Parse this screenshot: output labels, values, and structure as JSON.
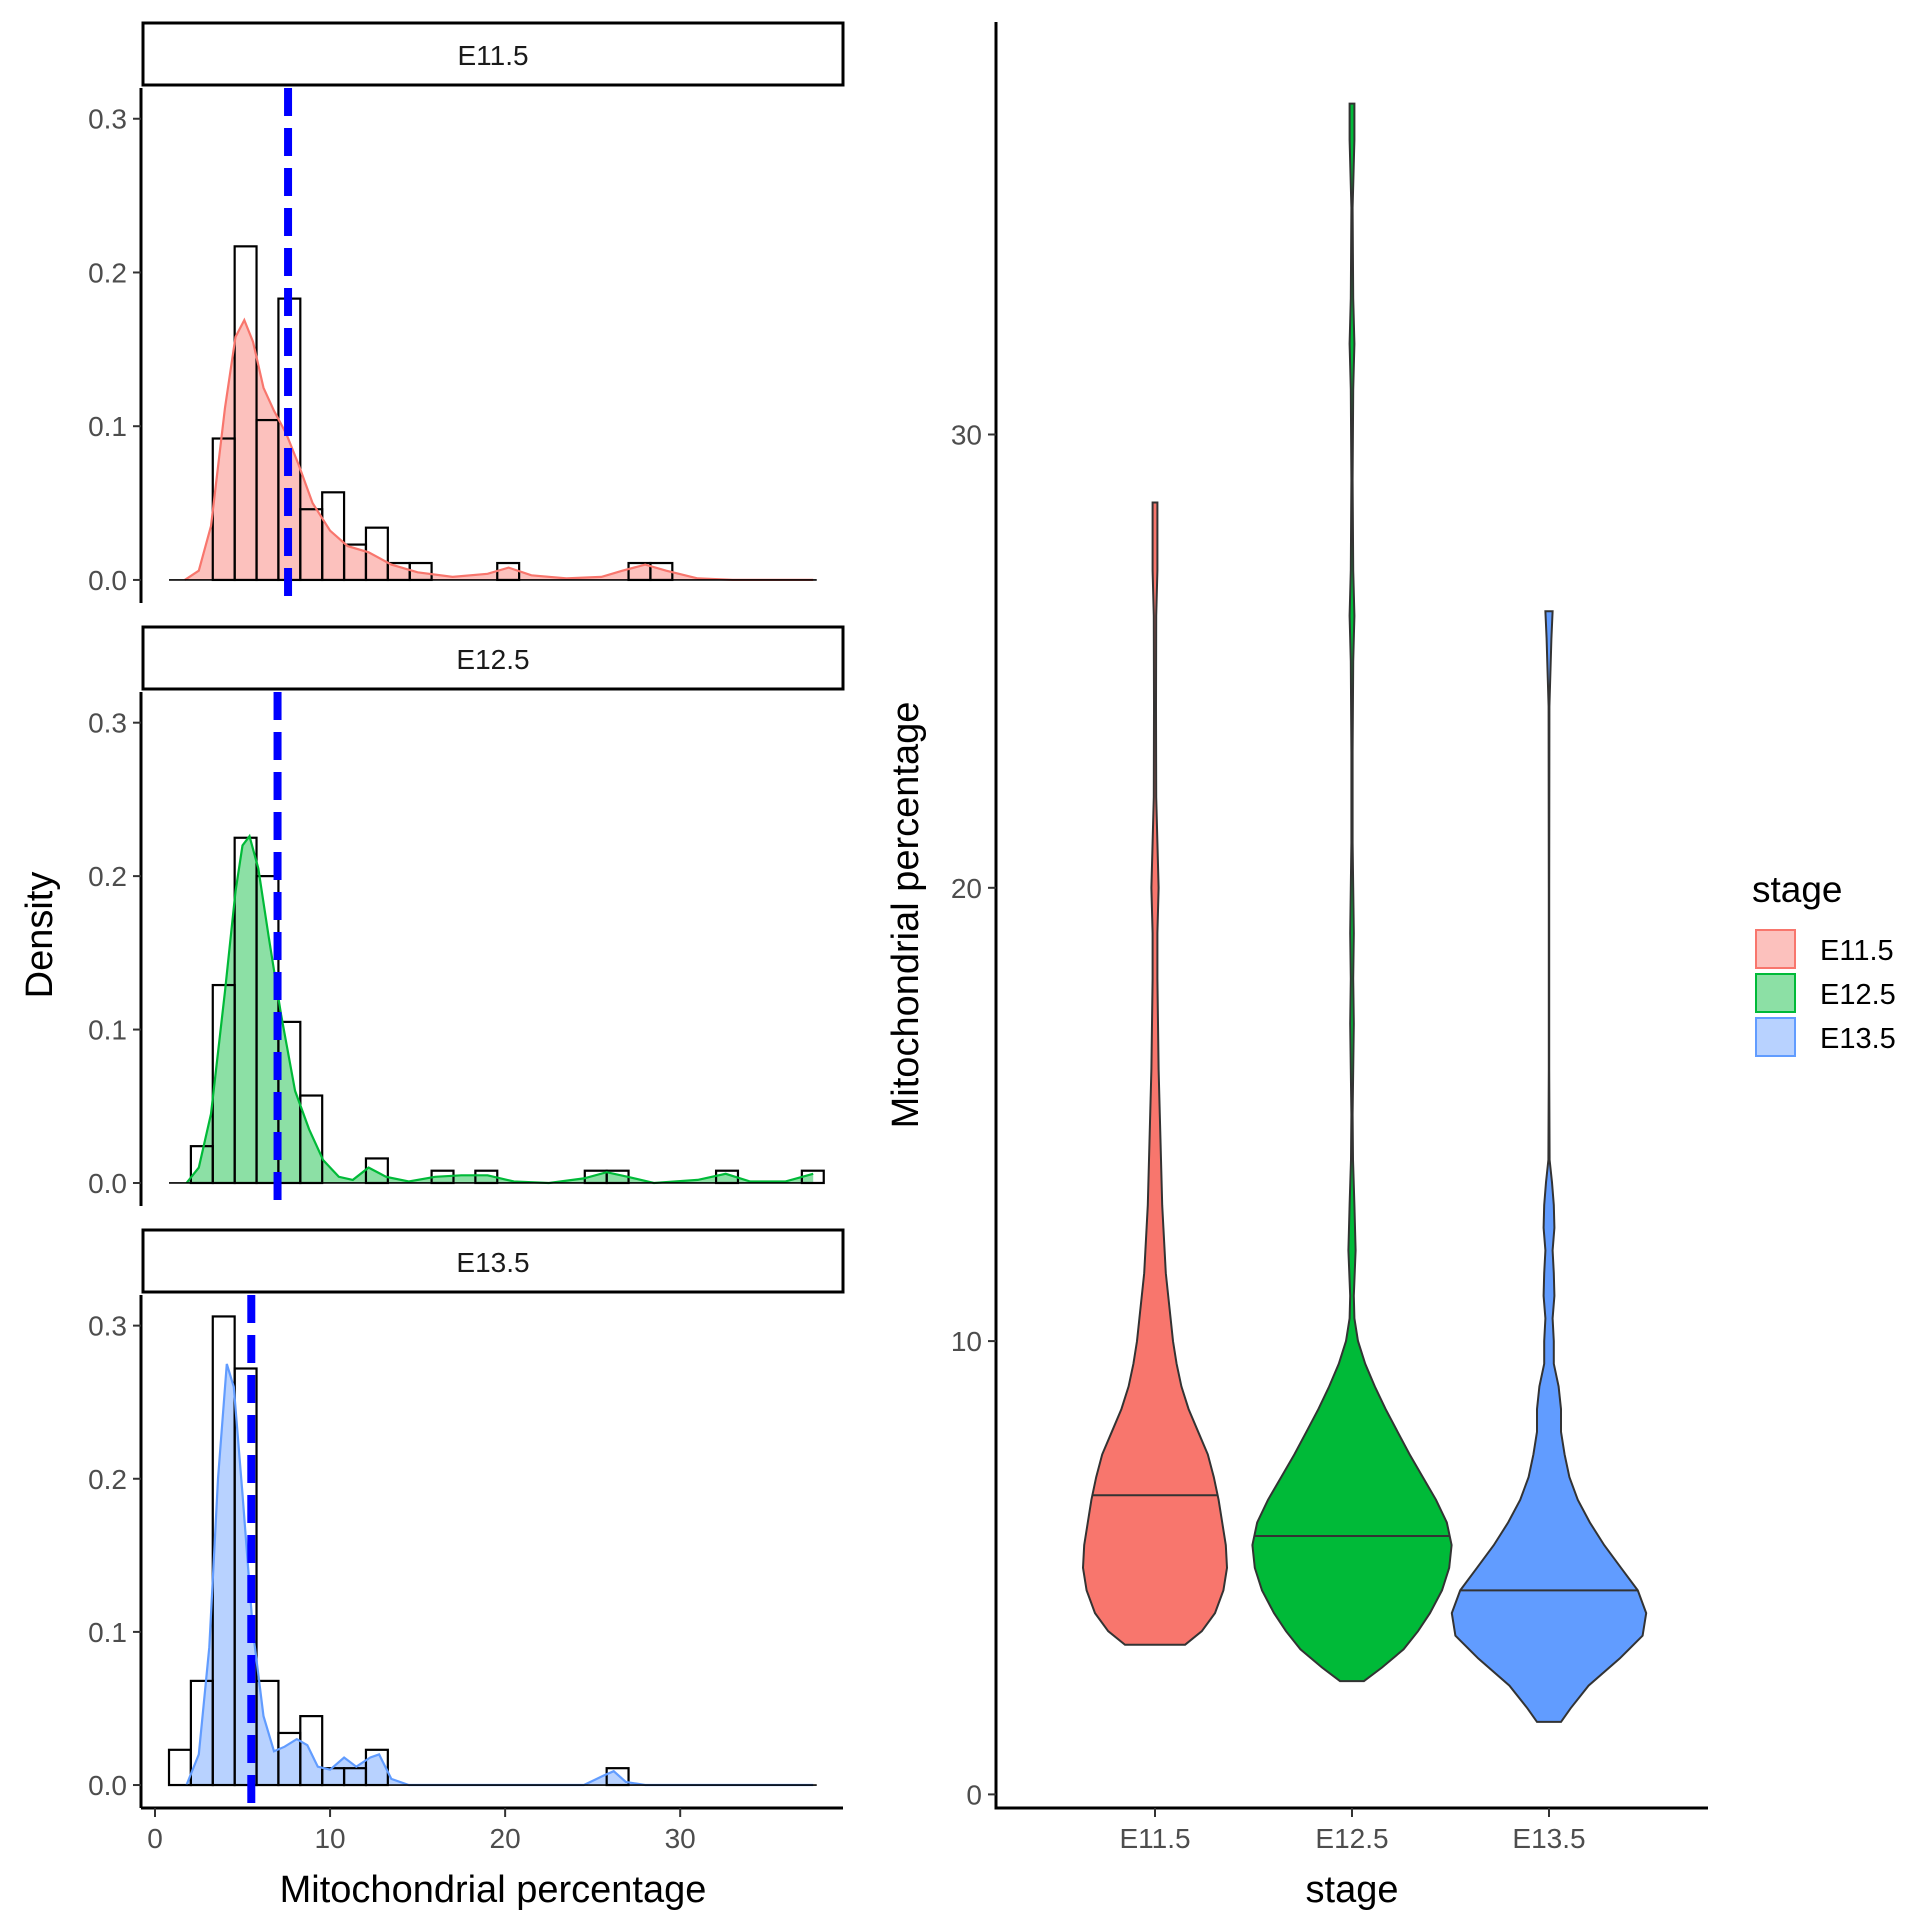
{
  "colors": {
    "E11.5": "#F8766D",
    "E12.5": "#00BA38",
    "E13.5": "#619CFF",
    "mean_line": "#0000FF"
  },
  "chart_data": [
    {
      "type": "histogram",
      "panel_layout": "faceted, 3 rows",
      "xlabel": "Mitochondrial percentage",
      "ylabel": "Density",
      "xlim": [
        -0.8,
        39.3
      ],
      "ylim": [
        -0.015,
        0.32
      ],
      "xticks": [
        0,
        10,
        20,
        30
      ],
      "yticks": [
        0.0,
        0.1,
        0.2,
        0.3
      ],
      "bin_width": 1.25,
      "overlays": [
        "kernel density curve (filled, semi-transparent)",
        "dashed vertical line at mean"
      ],
      "facets": [
        {
          "label": "E11.5",
          "mean_line_x": 7.6,
          "bins": [
            {
              "x0": 3.3,
              "x1": 4.55,
              "density": 0.092
            },
            {
              "x0": 4.55,
              "x1": 5.8,
              "density": 0.217
            },
            {
              "x0": 5.8,
              "x1": 7.05,
              "density": 0.104
            },
            {
              "x0": 7.05,
              "x1": 8.3,
              "density": 0.183
            },
            {
              "x0": 8.3,
              "x1": 9.55,
              "density": 0.046
            },
            {
              "x0": 9.55,
              "x1": 10.8,
              "density": 0.057
            },
            {
              "x0": 10.8,
              "x1": 12.05,
              "density": 0.023
            },
            {
              "x0": 12.05,
              "x1": 13.3,
              "density": 0.034
            },
            {
              "x0": 13.3,
              "x1": 14.55,
              "density": 0.011
            },
            {
              "x0": 14.55,
              "x1": 15.8,
              "density": 0.011
            },
            {
              "x0": 19.55,
              "x1": 20.8,
              "density": 0.011
            },
            {
              "x0": 27.05,
              "x1": 28.3,
              "density": 0.011
            },
            {
              "x0": 28.3,
              "x1": 29.55,
              "density": 0.011
            }
          ],
          "density_curve": [
            [
              1.7,
              0.0
            ],
            [
              2.5,
              0.006
            ],
            [
              3.2,
              0.035
            ],
            [
              4.0,
              0.112
            ],
            [
              4.6,
              0.158
            ],
            [
              5.1,
              0.169
            ],
            [
              5.6,
              0.155
            ],
            [
              6.2,
              0.125
            ],
            [
              6.8,
              0.11
            ],
            [
              7.5,
              0.095
            ],
            [
              8.2,
              0.075
            ],
            [
              9.0,
              0.05
            ],
            [
              10.0,
              0.032
            ],
            [
              11.0,
              0.022
            ],
            [
              12.2,
              0.018
            ],
            [
              13.5,
              0.01
            ],
            [
              15.0,
              0.005
            ],
            [
              17.0,
              0.002
            ],
            [
              19.0,
              0.004
            ],
            [
              20.2,
              0.008
            ],
            [
              21.5,
              0.003
            ],
            [
              23.5,
              0.001
            ],
            [
              25.5,
              0.002
            ],
            [
              26.7,
              0.006
            ],
            [
              28.0,
              0.01
            ],
            [
              29.2,
              0.006
            ],
            [
              31.0,
              0.001
            ],
            [
              33.0,
              0.0
            ],
            [
              37.6,
              0.0
            ]
          ]
        },
        {
          "label": "E12.5",
          "mean_line_x": 7.0,
          "bins": [
            {
              "x0": 2.05,
              "x1": 3.3,
              "density": 0.024
            },
            {
              "x0": 3.3,
              "x1": 4.55,
              "density": 0.129
            },
            {
              "x0": 4.55,
              "x1": 5.8,
              "density": 0.225
            },
            {
              "x0": 5.8,
              "x1": 7.05,
              "density": 0.2
            },
            {
              "x0": 7.05,
              "x1": 8.3,
              "density": 0.105
            },
            {
              "x0": 8.3,
              "x1": 9.55,
              "density": 0.057
            },
            {
              "x0": 12.05,
              "x1": 13.3,
              "density": 0.016
            },
            {
              "x0": 15.8,
              "x1": 17.05,
              "density": 0.008
            },
            {
              "x0": 18.3,
              "x1": 19.55,
              "density": 0.008
            },
            {
              "x0": 24.55,
              "x1": 25.8,
              "density": 0.008
            },
            {
              "x0": 25.8,
              "x1": 27.05,
              "density": 0.008
            },
            {
              "x0": 32.05,
              "x1": 33.3,
              "density": 0.008
            },
            {
              "x0": 36.95,
              "x1": 38.2,
              "density": 0.008
            }
          ],
          "density_curve": [
            [
              1.8,
              0.0
            ],
            [
              2.5,
              0.01
            ],
            [
              3.2,
              0.045
            ],
            [
              4.0,
              0.125
            ],
            [
              4.6,
              0.19
            ],
            [
              5.0,
              0.22
            ],
            [
              5.4,
              0.226
            ],
            [
              5.9,
              0.205
            ],
            [
              6.5,
              0.16
            ],
            [
              7.2,
              0.11
            ],
            [
              8.0,
              0.06
            ],
            [
              8.8,
              0.035
            ],
            [
              9.6,
              0.015
            ],
            [
              10.5,
              0.004
            ],
            [
              11.3,
              0.002
            ],
            [
              12.2,
              0.01
            ],
            [
              13.2,
              0.004
            ],
            [
              14.5,
              0.001
            ],
            [
              16.0,
              0.004
            ],
            [
              17.5,
              0.005
            ],
            [
              19.0,
              0.005
            ],
            [
              20.5,
              0.001
            ],
            [
              22.5,
              0.0
            ],
            [
              24.5,
              0.003
            ],
            [
              25.8,
              0.007
            ],
            [
              27.0,
              0.004
            ],
            [
              28.5,
              0.0
            ],
            [
              31.0,
              0.002
            ],
            [
              32.6,
              0.006
            ],
            [
              34.0,
              0.001
            ],
            [
              36.0,
              0.001
            ],
            [
              37.6,
              0.006
            ]
          ]
        },
        {
          "label": "E13.5",
          "mean_line_x": 5.5,
          "bins": [
            {
              "x0": 0.8,
              "x1": 2.05,
              "density": 0.023
            },
            {
              "x0": 2.05,
              "x1": 3.3,
              "density": 0.068
            },
            {
              "x0": 3.3,
              "x1": 4.55,
              "density": 0.306
            },
            {
              "x0": 4.55,
              "x1": 5.8,
              "density": 0.272
            },
            {
              "x0": 5.8,
              "x1": 7.05,
              "density": 0.068
            },
            {
              "x0": 7.05,
              "x1": 8.3,
              "density": 0.034
            },
            {
              "x0": 8.3,
              "x1": 9.55,
              "density": 0.045
            },
            {
              "x0": 9.55,
              "x1": 10.8,
              "density": 0.011
            },
            {
              "x0": 10.8,
              "x1": 12.05,
              "density": 0.011
            },
            {
              "x0": 12.05,
              "x1": 13.3,
              "density": 0.023
            },
            {
              "x0": 25.8,
              "x1": 27.05,
              "density": 0.011
            }
          ],
          "density_curve": [
            [
              1.8,
              0.0
            ],
            [
              2.5,
              0.02
            ],
            [
              3.1,
              0.09
            ],
            [
              3.6,
              0.2
            ],
            [
              4.1,
              0.275
            ],
            [
              4.5,
              0.26
            ],
            [
              5.0,
              0.19
            ],
            [
              5.6,
              0.1
            ],
            [
              6.2,
              0.045
            ],
            [
              6.8,
              0.022
            ],
            [
              7.4,
              0.025
            ],
            [
              8.1,
              0.03
            ],
            [
              8.7,
              0.026
            ],
            [
              9.3,
              0.012
            ],
            [
              10.0,
              0.01
            ],
            [
              10.8,
              0.018
            ],
            [
              11.5,
              0.012
            ],
            [
              12.3,
              0.018
            ],
            [
              12.8,
              0.02
            ],
            [
              13.5,
              0.004
            ],
            [
              14.5,
              0.0
            ],
            [
              24.5,
              0.0
            ],
            [
              25.6,
              0.006
            ],
            [
              26.2,
              0.009
            ],
            [
              26.9,
              0.002
            ],
            [
              28.0,
              0.0
            ],
            [
              37.6,
              0.0
            ]
          ]
        }
      ]
    },
    {
      "type": "violin",
      "xlabel": "stage",
      "ylabel": "Mitochondrial percentage",
      "categories": [
        "E11.5",
        "E12.5",
        "E13.5"
      ],
      "ylim": [
        -0.3,
        39.1
      ],
      "yticks": [
        0,
        10,
        20,
        30
      ],
      "legend": {
        "title": "stage",
        "position": "right",
        "entries": [
          "E11.5",
          "E12.5",
          "E13.5"
        ]
      },
      "series": [
        {
          "name": "E11.5",
          "median": 6.6,
          "min": 3.3,
          "max": 28.5,
          "half_width_profile": [
            [
              3.3,
              0.25
            ],
            [
              3.6,
              0.39
            ],
            [
              4.0,
              0.5
            ],
            [
              4.5,
              0.57
            ],
            [
              5.0,
              0.6
            ],
            [
              5.5,
              0.59
            ],
            [
              6.0,
              0.56
            ],
            [
              6.5,
              0.53
            ],
            [
              7.0,
              0.49
            ],
            [
              7.5,
              0.44
            ],
            [
              8.0,
              0.36
            ],
            [
              8.5,
              0.28
            ],
            [
              9.0,
              0.22
            ],
            [
              9.5,
              0.18
            ],
            [
              10.0,
              0.15
            ],
            [
              10.5,
              0.13
            ],
            [
              11.0,
              0.11
            ],
            [
              11.5,
              0.09
            ],
            [
              12.0,
              0.08
            ],
            [
              12.5,
              0.07
            ],
            [
              13.0,
              0.06
            ],
            [
              14.0,
              0.05
            ],
            [
              15.0,
              0.04
            ],
            [
              16.0,
              0.03
            ],
            [
              17.0,
              0.025
            ],
            [
              18.0,
              0.02
            ],
            [
              19.0,
              0.02
            ],
            [
              20.0,
              0.03
            ],
            [
              21.0,
              0.02
            ],
            [
              22.0,
              0.01
            ],
            [
              24.0,
              0.008
            ],
            [
              26.0,
              0.01
            ],
            [
              27.0,
              0.02
            ],
            [
              28.0,
              0.02
            ],
            [
              28.5,
              0.02
            ]
          ]
        },
        {
          "name": "E12.5",
          "median": 5.7,
          "min": 2.5,
          "max": 37.3,
          "half_width_profile": [
            [
              2.5,
              0.1
            ],
            [
              2.8,
              0.25
            ],
            [
              3.2,
              0.43
            ],
            [
              3.6,
              0.55
            ],
            [
              4.0,
              0.65
            ],
            [
              4.5,
              0.75
            ],
            [
              5.0,
              0.81
            ],
            [
              5.5,
              0.83
            ],
            [
              6.0,
              0.79
            ],
            [
              6.5,
              0.7
            ],
            [
              7.0,
              0.59
            ],
            [
              7.5,
              0.48
            ],
            [
              8.0,
              0.38
            ],
            [
              8.5,
              0.28
            ],
            [
              9.0,
              0.19
            ],
            [
              9.5,
              0.11
            ],
            [
              10.0,
              0.05
            ],
            [
              10.5,
              0.02
            ],
            [
              11.0,
              0.015
            ],
            [
              12.0,
              0.03
            ],
            [
              13.0,
              0.02
            ],
            [
              14.0,
              0.008
            ],
            [
              15.0,
              0.005
            ],
            [
              16.0,
              0.01
            ],
            [
              17.0,
              0.015
            ],
            [
              18.0,
              0.01
            ],
            [
              19.0,
              0.015
            ],
            [
              20.0,
              0.01
            ],
            [
              21.0,
              0.005
            ],
            [
              23.0,
              0.005
            ],
            [
              25.0,
              0.01
            ],
            [
              26.0,
              0.02
            ],
            [
              27.0,
              0.01
            ],
            [
              29.0,
              0.005
            ],
            [
              31.0,
              0.01
            ],
            [
              32.0,
              0.02
            ],
            [
              33.0,
              0.01
            ],
            [
              35.0,
              0.005
            ],
            [
              36.5,
              0.02
            ],
            [
              37.3,
              0.02
            ]
          ]
        },
        {
          "name": "E13.5",
          "median": 4.5,
          "min": 1.6,
          "max": 26.1,
          "half_width_profile": [
            [
              1.6,
              0.1
            ],
            [
              1.9,
              0.18
            ],
            [
              2.4,
              0.33
            ],
            [
              3.0,
              0.59
            ],
            [
              3.5,
              0.78
            ],
            [
              4.0,
              0.81
            ],
            [
              4.5,
              0.74
            ],
            [
              5.0,
              0.6
            ],
            [
              5.5,
              0.46
            ],
            [
              6.0,
              0.34
            ],
            [
              6.5,
              0.24
            ],
            [
              7.0,
              0.17
            ],
            [
              7.5,
              0.13
            ],
            [
              8.0,
              0.1
            ],
            [
              8.5,
              0.1
            ],
            [
              9.0,
              0.08
            ],
            [
              9.5,
              0.04
            ],
            [
              10.0,
              0.04
            ],
            [
              10.5,
              0.03
            ],
            [
              11.0,
              0.045
            ],
            [
              11.5,
              0.04
            ],
            [
              12.0,
              0.03
            ],
            [
              12.5,
              0.045
            ],
            [
              13.0,
              0.04
            ],
            [
              13.5,
              0.025
            ],
            [
              14.0,
              0.005
            ],
            [
              16.0,
              0.002
            ],
            [
              20.0,
              0.002
            ],
            [
              24.0,
              0.003
            ],
            [
              25.5,
              0.02
            ],
            [
              26.1,
              0.03
            ]
          ]
        }
      ]
    }
  ]
}
